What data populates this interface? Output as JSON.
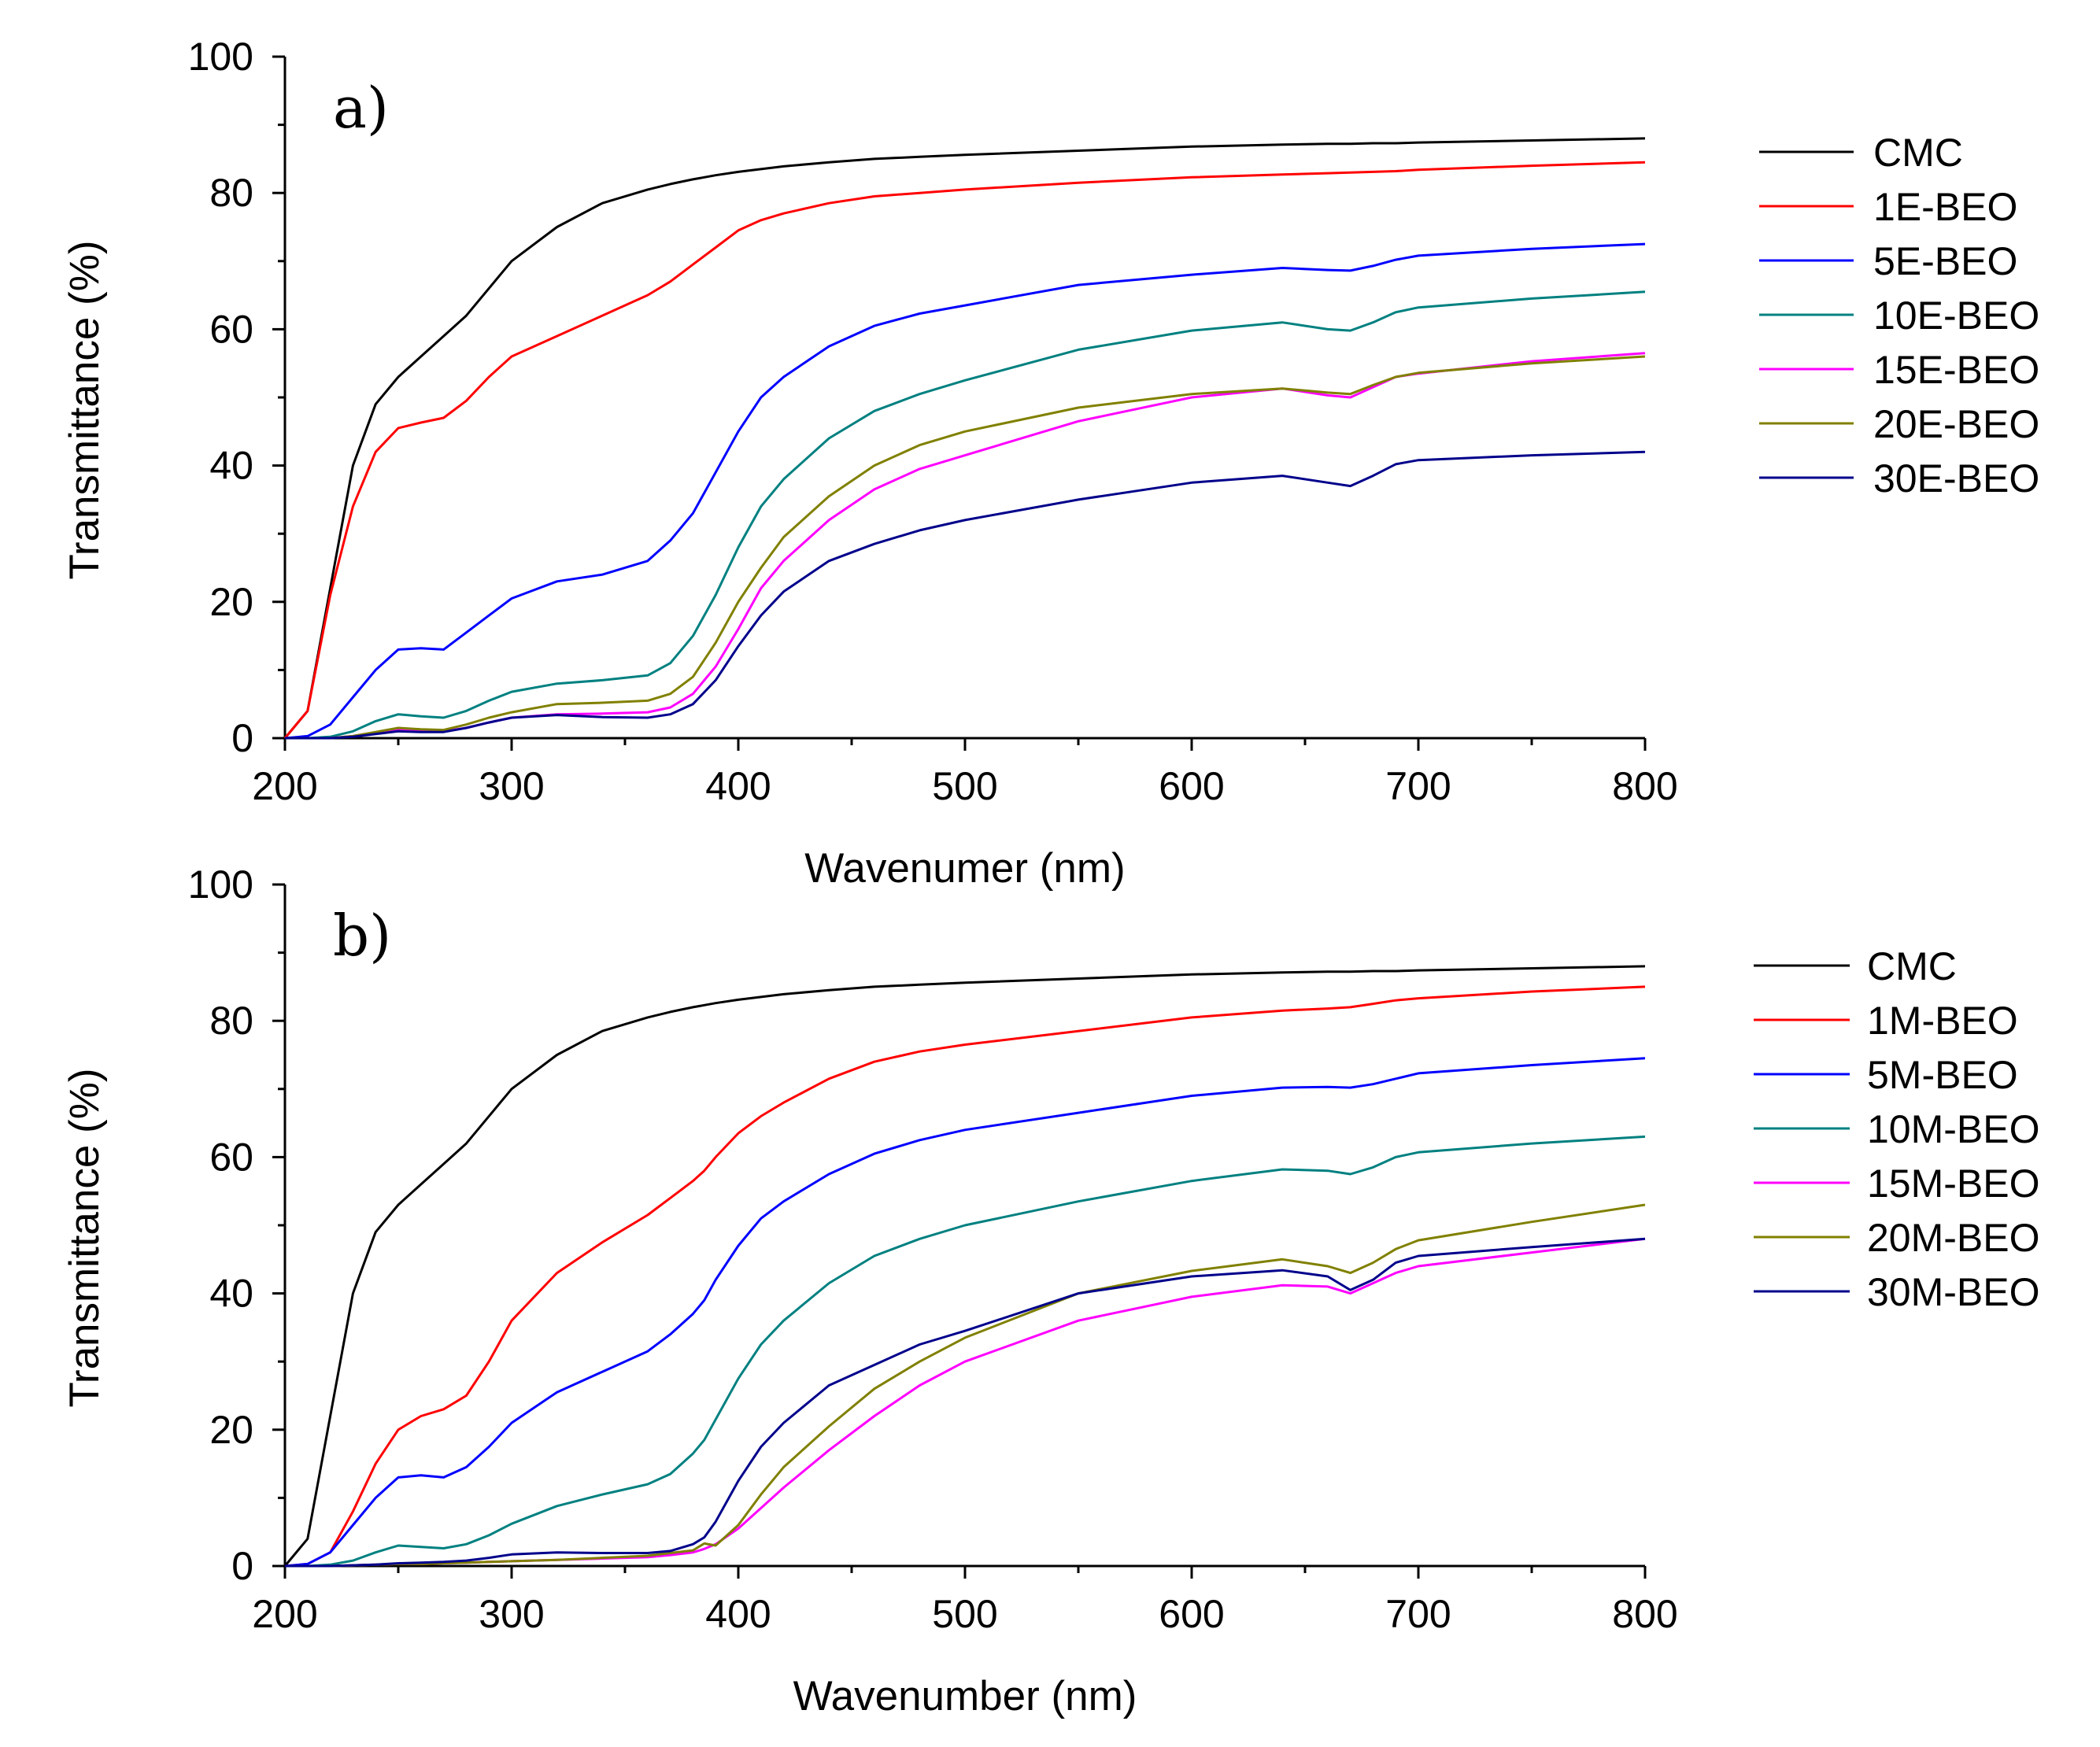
{
  "chart_data": [
    {
      "type": "line",
      "panel_label": "a)",
      "xlabel": "Wavenumer (nm)",
      "ylabel": "Transmittance (%)",
      "xlim": [
        200,
        800
      ],
      "ylim": [
        0,
        100
      ],
      "xticks": [
        200,
        300,
        400,
        500,
        600,
        700,
        800
      ],
      "yticks": [
        0,
        20,
        40,
        60,
        80,
        100
      ],
      "legend_position": "right",
      "x": [
        200,
        210,
        220,
        230,
        240,
        250,
        260,
        270,
        280,
        290,
        300,
        320,
        340,
        360,
        370,
        380,
        390,
        400,
        410,
        420,
        440,
        460,
        480,
        500,
        550,
        600,
        640,
        660,
        670,
        680,
        690,
        700,
        750,
        800
      ],
      "series": [
        {
          "name": "CMC",
          "color": "#000000",
          "values": [
            0,
            4,
            22,
            40,
            49,
            53,
            56,
            59,
            62,
            66,
            70,
            75,
            78.5,
            80.5,
            81.3,
            82,
            82.6,
            83.1,
            83.5,
            83.9,
            84.5,
            85,
            85.3,
            85.6,
            86.2,
            86.8,
            87.1,
            87.2,
            87.2,
            87.3,
            87.3,
            87.4,
            87.7,
            88
          ]
        },
        {
          "name": "1E-BEO",
          "color": "#ff0000",
          "values": [
            0,
            4,
            21,
            34,
            42,
            45.5,
            46.3,
            47,
            49.5,
            53,
            56,
            59,
            62,
            65,
            67,
            69.5,
            72,
            74.5,
            76,
            77,
            78.5,
            79.5,
            80,
            80.5,
            81.5,
            82.3,
            82.7,
            82.9,
            83,
            83.1,
            83.2,
            83.4,
            84,
            84.5
          ]
        },
        {
          "name": "5E-BEO",
          "color": "#0000ff",
          "values": [
            0,
            0.3,
            2,
            6,
            10,
            13,
            13.2,
            13,
            15.5,
            18,
            20.5,
            23,
            24,
            26,
            29,
            33,
            39,
            45,
            50,
            53,
            57.5,
            60.5,
            62.3,
            63.5,
            66.5,
            68,
            69,
            68.7,
            68.6,
            69.3,
            70.2,
            70.8,
            71.8,
            72.5
          ]
        },
        {
          "name": "10E-BEO",
          "color": "#008080",
          "values": [
            0,
            0,
            0.2,
            1,
            2.5,
            3.5,
            3.2,
            3,
            4,
            5.5,
            6.8,
            8,
            8.5,
            9.2,
            11,
            15,
            21,
            28,
            34,
            38,
            44,
            48,
            50.5,
            52.5,
            57,
            59.8,
            61,
            60,
            59.8,
            61,
            62.5,
            63.2,
            64.5,
            65.5
          ]
        },
        {
          "name": "15E-BEO",
          "color": "#ff00ff",
          "values": [
            0,
            0,
            0,
            0.3,
            0.8,
            1.2,
            1,
            1,
            1.5,
            2.3,
            3,
            3.5,
            3.6,
            3.8,
            4.5,
            6.5,
            10.5,
            16,
            22,
            26,
            32,
            36.5,
            39.5,
            41.5,
            46.5,
            50,
            51.3,
            50.3,
            50,
            51.5,
            53,
            53.5,
            55.3,
            56.5
          ]
        },
        {
          "name": "20E-BEO",
          "color": "#808000",
          "values": [
            0,
            0,
            0,
            0.3,
            0.9,
            1.5,
            1.3,
            1.2,
            2,
            3,
            3.8,
            5,
            5.2,
            5.5,
            6.5,
            9,
            14,
            20,
            25,
            29.5,
            35.5,
            40,
            43,
            45,
            48.5,
            50.5,
            51.3,
            50.7,
            50.5,
            51.8,
            53,
            53.6,
            55,
            56
          ]
        },
        {
          "name": "30E-BEO",
          "color": "#00008b",
          "values": [
            0,
            0,
            0,
            0.2,
            0.6,
            1,
            0.9,
            0.9,
            1.5,
            2.3,
            3,
            3.4,
            3.1,
            3,
            3.5,
            5,
            8.5,
            13.5,
            18,
            21.5,
            26,
            28.5,
            30.5,
            32,
            35,
            37.5,
            38.5,
            37.5,
            37,
            38.5,
            40.2,
            40.8,
            41.5,
            42
          ]
        }
      ]
    },
    {
      "type": "line",
      "panel_label": "b)",
      "xlabel": "Wavenumber (nm)",
      "ylabel": "Transmittance (%)",
      "xlim": [
        200,
        800
      ],
      "ylim": [
        0,
        100
      ],
      "xticks": [
        200,
        300,
        400,
        500,
        600,
        700,
        800
      ],
      "yticks": [
        0,
        20,
        40,
        60,
        80,
        100
      ],
      "legend_position": "right",
      "x": [
        200,
        210,
        220,
        230,
        240,
        250,
        260,
        270,
        280,
        290,
        300,
        320,
        340,
        360,
        370,
        380,
        385,
        390,
        400,
        410,
        420,
        440,
        460,
        480,
        500,
        550,
        600,
        640,
        660,
        670,
        680,
        690,
        700,
        750,
        800
      ],
      "series": [
        {
          "name": "CMC",
          "color": "#000000",
          "values": [
            0,
            4,
            22,
            40,
            49,
            53,
            56,
            59,
            62,
            66,
            70,
            75,
            78.5,
            80.5,
            81.3,
            82,
            82.3,
            82.6,
            83.1,
            83.5,
            83.9,
            84.5,
            85,
            85.3,
            85.6,
            86.2,
            86.8,
            87.1,
            87.2,
            87.2,
            87.3,
            87.3,
            87.4,
            87.7,
            88
          ]
        },
        {
          "name": "1M-BEO",
          "color": "#ff0000",
          "values": [
            0,
            0.3,
            2,
            8,
            15,
            20,
            22,
            23,
            25,
            30,
            36,
            43,
            47.5,
            51.5,
            54,
            56.5,
            58,
            60,
            63.5,
            66,
            68,
            71.5,
            74,
            75.5,
            76.5,
            78.5,
            80.5,
            81.5,
            81.8,
            82,
            82.5,
            83,
            83.3,
            84.3,
            85
          ]
        },
        {
          "name": "5M-BEO",
          "color": "#0000ff",
          "values": [
            0,
            0.3,
            2,
            6,
            10,
            13,
            13.3,
            13,
            14.5,
            17.5,
            21,
            25.5,
            28.5,
            31.5,
            34,
            37,
            39,
            42,
            47,
            51,
            53.5,
            57.5,
            60.5,
            62.5,
            64,
            66.5,
            69,
            70.2,
            70.3,
            70.2,
            70.7,
            71.5,
            72.3,
            73.5,
            74.5
          ]
        },
        {
          "name": "10M-BEO",
          "color": "#008080",
          "values": [
            0,
            0,
            0.2,
            0.8,
            2,
            3,
            2.8,
            2.6,
            3.2,
            4.5,
            6.2,
            8.8,
            10.5,
            12,
            13.5,
            16.5,
            18.5,
            21.5,
            27.5,
            32.5,
            36,
            41.5,
            45.5,
            48,
            50,
            53.5,
            56.5,
            58.2,
            58,
            57.5,
            58.5,
            60,
            60.7,
            62,
            63
          ]
        },
        {
          "name": "15M-BEO",
          "color": "#ff00ff",
          "values": [
            0,
            0,
            0,
            0.1,
            0.2,
            0.3,
            0.3,
            0.4,
            0.5,
            0.6,
            0.7,
            0.9,
            1.1,
            1.3,
            1.6,
            2,
            2.5,
            3.2,
            5.5,
            8.5,
            11.5,
            17,
            22,
            26.5,
            30,
            36,
            39.5,
            41.2,
            41,
            40,
            41.5,
            43,
            44,
            46,
            48
          ]
        },
        {
          "name": "20M-BEO",
          "color": "#808000",
          "values": [
            0,
            0,
            0,
            0.1,
            0.2,
            0.3,
            0.3,
            0.4,
            0.5,
            0.6,
            0.7,
            0.9,
            1.2,
            1.5,
            1.9,
            2.3,
            3.3,
            3,
            6,
            10.5,
            14.5,
            20.5,
            26,
            30,
            33.5,
            40,
            43.3,
            45,
            44,
            43,
            44.5,
            46.5,
            47.8,
            50.5,
            53
          ]
        },
        {
          "name": "30M-BEO",
          "color": "#00008b",
          "values": [
            0,
            0,
            0,
            0.1,
            0.2,
            0.4,
            0.5,
            0.6,
            0.8,
            1.2,
            1.7,
            2,
            1.9,
            1.9,
            2.2,
            3.2,
            4.2,
            6.5,
            12.5,
            17.5,
            21,
            26.5,
            29.5,
            32.5,
            34.5,
            40,
            42.5,
            43.4,
            42.5,
            40.5,
            42,
            44.5,
            45.5,
            46.8,
            48
          ]
        }
      ]
    }
  ]
}
